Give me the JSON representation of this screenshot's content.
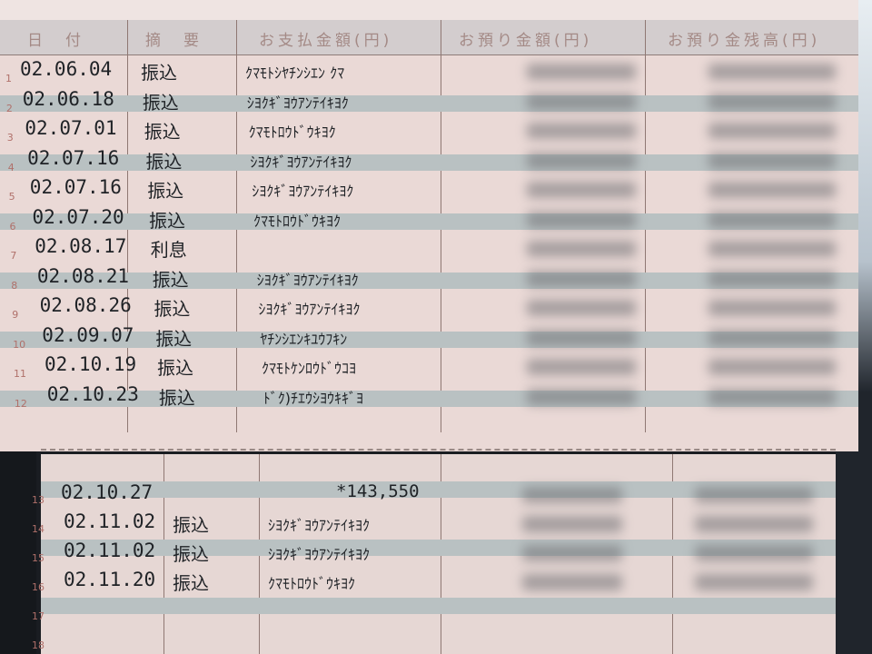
{
  "header": {
    "date": "日　付",
    "summary": "摘　要",
    "payment": "お支払金額(円)",
    "deposit": "お預り金額(円)",
    "balance": "お預り金残高(円)"
  },
  "rows": [
    {
      "no": "1",
      "date": "02.06.04",
      "kind": "振込",
      "payee": "ｸﾏﾓﾄｼﾔﾁﾝｼｴﾝ ｸﾏ"
    },
    {
      "no": "2",
      "date": "02.06.18",
      "kind": "振込",
      "payee": "ｼﾖｸｷﾞﾖｳｱﾝﾃｲｷﾖｸ"
    },
    {
      "no": "3",
      "date": "02.07.01",
      "kind": "振込",
      "payee": "ｸﾏﾓﾄﾛｳﾄﾞｳｷﾖｸ"
    },
    {
      "no": "4",
      "date": "02.07.16",
      "kind": "振込",
      "payee": "ｼﾖｸｷﾞﾖｳｱﾝﾃｲｷﾖｸ"
    },
    {
      "no": "5",
      "date": "02.07.16",
      "kind": "振込",
      "payee": "ｼﾖｸｷﾞﾖｳｱﾝﾃｲｷﾖｸ"
    },
    {
      "no": "6",
      "date": "02.07.20",
      "kind": "振込",
      "payee": "ｸﾏﾓﾄﾛｳﾄﾞｳｷﾖｸ"
    },
    {
      "no": "7",
      "date": "02.08.17",
      "kind": "利息",
      "payee": ""
    },
    {
      "no": "8",
      "date": "02.08.21",
      "kind": "振込",
      "payee": "ｼﾖｸｷﾞﾖｳｱﾝﾃｲｷﾖｸ"
    },
    {
      "no": "9",
      "date": "02.08.26",
      "kind": "振込",
      "payee": "ｼﾖｸｷﾞﾖｳｱﾝﾃｲｷﾖｸ"
    },
    {
      "no": "10",
      "date": "02.09.07",
      "kind": "振込",
      "payee": "ﾔﾁﾝｼｴﾝｷﾕｳﾌｷﾝ"
    },
    {
      "no": "11",
      "date": "02.10.19",
      "kind": "振込",
      "payee": "ｸﾏﾓﾄｹﾝﾛｳﾄﾞｳｺﾖ"
    },
    {
      "no": "12",
      "date": "02.10.23",
      "kind": "振込",
      "payee": "ﾄﾞｸ)ﾁｴｳｼﾖｳｷｷﾞﾖ"
    }
  ],
  "lower_rows": [
    {
      "no": "13",
      "date": "02.10.27",
      "kind": "",
      "payee": "",
      "payment": "*143,550"
    },
    {
      "no": "14",
      "date": "02.11.02",
      "kind": "振込",
      "payee": "ｼﾖｸｷﾞﾖｳｱﾝﾃｲｷﾖｸ"
    },
    {
      "no": "15",
      "date": "02.11.02",
      "kind": "振込",
      "payee": "ｼﾖｸｷﾞﾖｳｱﾝﾃｲｷﾖｸ"
    },
    {
      "no": "16",
      "date": "02.11.20",
      "kind": "振込",
      "payee": "ｸﾏﾓﾄﾛｳﾄﾞｳｷﾖｸ"
    },
    {
      "no": "17",
      "date": "",
      "kind": "",
      "payee": ""
    },
    {
      "no": "18",
      "date": "",
      "kind": "",
      "payee": ""
    }
  ],
  "colors": {
    "paper": "#ead9d6",
    "band": "#b9c1c2",
    "ink": "#1f2226",
    "line_number": "#b0706a"
  }
}
